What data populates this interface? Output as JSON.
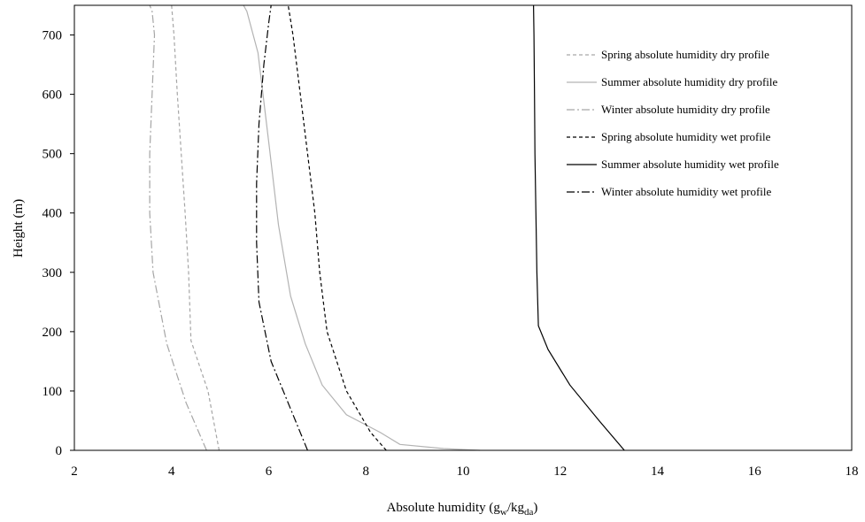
{
  "chart_data": {
    "type": "line",
    "title": "",
    "xlabel": "Absolute humidity (g",
    "xlabel_sub1": "w",
    "xlabel_mid": "/kg",
    "xlabel_sub2": "da",
    "xlabel_end": ")",
    "ylabel": "Height (m)",
    "xlim": [
      2,
      18
    ],
    "ylim": [
      0,
      750
    ],
    "xticks": [
      2,
      4,
      6,
      8,
      10,
      12,
      14,
      16,
      18
    ],
    "yticks": [
      0,
      100,
      200,
      300,
      400,
      500,
      600,
      700
    ],
    "grid": false,
    "legend_position": "top-right",
    "series": [
      {
        "name": "Spring absolute humidity dry profile",
        "color": "#a6a6a6",
        "dash": "4,3",
        "points": [
          [
            4.98,
            0
          ],
          [
            4.75,
            100
          ],
          [
            4.4,
            185
          ],
          [
            4.35,
            300
          ],
          [
            4.28,
            400
          ],
          [
            4.2,
            500
          ],
          [
            4.12,
            600
          ],
          [
            4.05,
            700
          ],
          [
            4.0,
            750
          ]
        ]
      },
      {
        "name": "Summer absolute humidity dry profile",
        "color": "#b3b3b3",
        "dash": "",
        "points": [
          [
            10.35,
            0
          ],
          [
            9.6,
            3
          ],
          [
            8.7,
            10
          ],
          [
            8.3,
            30
          ],
          [
            7.6,
            60
          ],
          [
            7.1,
            110
          ],
          [
            6.75,
            180
          ],
          [
            6.45,
            260
          ],
          [
            6.2,
            380
          ],
          [
            6.0,
            520
          ],
          [
            5.78,
            670
          ],
          [
            5.55,
            740
          ],
          [
            5.48,
            750
          ]
        ]
      },
      {
        "name": "Winter absolute humidity dry profile",
        "color": "#a6a6a6",
        "dash": "9,3,2,3",
        "points": [
          [
            4.72,
            0
          ],
          [
            4.3,
            80
          ],
          [
            3.9,
            180
          ],
          [
            3.62,
            300
          ],
          [
            3.55,
            400
          ],
          [
            3.55,
            500
          ],
          [
            3.6,
            600
          ],
          [
            3.65,
            700
          ],
          [
            3.6,
            740
          ],
          [
            3.55,
            750
          ]
        ]
      },
      {
        "name": "Spring absolute humidity wet profile",
        "color": "#000000",
        "dash": "4,3",
        "points": [
          [
            8.42,
            0
          ],
          [
            8.1,
            30
          ],
          [
            7.6,
            100
          ],
          [
            7.2,
            200
          ],
          [
            7.05,
            300
          ],
          [
            6.95,
            400
          ],
          [
            6.8,
            500
          ],
          [
            6.65,
            600
          ],
          [
            6.5,
            700
          ],
          [
            6.4,
            750
          ]
        ]
      },
      {
        "name": "Summer absolute humidity wet profile",
        "color": "#000000",
        "dash": "",
        "points": [
          [
            13.32,
            0
          ],
          [
            12.8,
            50
          ],
          [
            12.2,
            110
          ],
          [
            11.75,
            170
          ],
          [
            11.55,
            210
          ],
          [
            11.52,
            300
          ],
          [
            11.5,
            400
          ],
          [
            11.48,
            500
          ],
          [
            11.47,
            600
          ],
          [
            11.46,
            700
          ],
          [
            11.45,
            750
          ]
        ]
      },
      {
        "name": "Winter absolute humidity wet profile",
        "color": "#000000",
        "dash": "9,3,2,3",
        "points": [
          [
            6.8,
            0
          ],
          [
            6.45,
            70
          ],
          [
            6.05,
            150
          ],
          [
            5.8,
            250
          ],
          [
            5.75,
            350
          ],
          [
            5.75,
            450
          ],
          [
            5.8,
            550
          ],
          [
            5.9,
            650
          ],
          [
            6.0,
            720
          ],
          [
            6.05,
            750
          ]
        ]
      }
    ]
  }
}
